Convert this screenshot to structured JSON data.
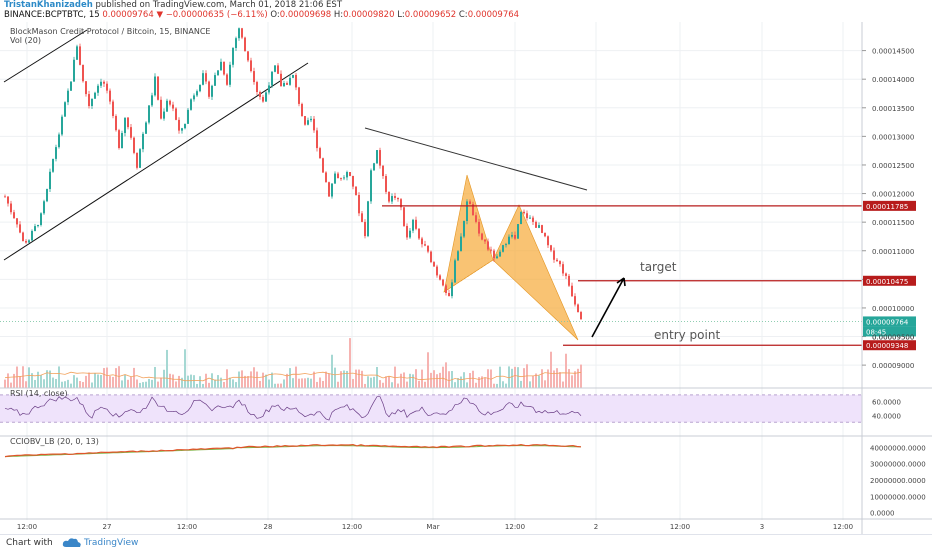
{
  "header": {
    "author": "TristanKhanizadeh",
    "published_text": "published on TradingView.com, March 01, 2018 21:06 EST",
    "symbol_line": "BINANCE:BCPTBTC, 15",
    "last_price": "0.00009764",
    "change_text": "−0.00000635 (−6.11%)",
    "ohlc": {
      "o_label": "O:",
      "o": "0.00009698",
      "h_label": "H:",
      "h": "0.00009820",
      "l_label": "L:",
      "l": "0.00009652",
      "c_label": "C:",
      "c": "0.00009764"
    }
  },
  "legend": {
    "title": "BlockMason Credit Protocol / Bitcoin, 15, BINANCE",
    "vol": "Vol (20)",
    "rsi": "RSI (14, close)",
    "obv": "CCIOBV_LB (20, 0, 13)"
  },
  "annotations": {
    "target": "target",
    "entry": "entry point"
  },
  "price_tags": {
    "last": "0.00009764",
    "countdown": "08:45",
    "level_top": "0.00011785",
    "level_target": "0.00010475",
    "level_entry": "0.00009348",
    "extra_tick": "0.00009500"
  },
  "footer": {
    "chart_with": "Chart with",
    "brand": "TradingView"
  },
  "colors": {
    "up": "#26a69a",
    "down": "#ef5350",
    "level_line": "#b71c1c",
    "pattern_fill": "#f7a937",
    "rsi_band": "#efe3fb",
    "rsi_line": "#6a3d86",
    "obv_line": "#e0542a",
    "obv_signal": "#7cb342",
    "trend_line": "#111111"
  },
  "chart_data": {
    "type": "candlestick",
    "symbol": "BCPTBTC",
    "interval": "15",
    "exchange": "BINANCE",
    "price_axis": {
      "ylim": [
        8.6e-05,
        0.00015
      ],
      "ticks": [
        0.000145,
        0.00014,
        0.000135,
        0.00013,
        0.000125,
        0.00012,
        0.000115,
        0.00011,
        0.000105,
        0.0001,
        9.5e-05,
        9e-05
      ]
    },
    "time_axis": {
      "tick_labels": [
        "12:00",
        "27",
        "12:00",
        "28",
        "12:00",
        "Mar",
        "12:00",
        "2",
        "12:00",
        "3",
        "12:00"
      ]
    },
    "price_path": [
      [
        0,
        0.0001195
      ],
      [
        6,
        0.000117
      ],
      [
        12,
        0.000115
      ],
      [
        18,
        0.0001115
      ],
      [
        24,
        0.000112
      ],
      [
        30,
        0.000114
      ],
      [
        36,
        0.000116
      ],
      [
        42,
        0.0001205
      ],
      [
        48,
        0.000126
      ],
      [
        54,
        0.0001305
      ],
      [
        60,
        0.0001355
      ],
      [
        66,
        0.00014
      ],
      [
        72,
        0.000146
      ],
      [
        78,
        0.0001395
      ],
      [
        84,
        0.0001355
      ],
      [
        90,
        0.000138
      ],
      [
        96,
        0.00014
      ],
      [
        102,
        0.000138
      ],
      [
        108,
        0.000133
      ],
      [
        114,
        0.0001285
      ],
      [
        120,
        0.0001335
      ],
      [
        126,
        0.00013
      ],
      [
        132,
        0.000125
      ],
      [
        138,
        0.0001305
      ],
      [
        144,
        0.000135
      ],
      [
        150,
        0.00014
      ],
      [
        156,
        0.000133
      ],
      [
        162,
        0.0001365
      ],
      [
        168,
        0.000135
      ],
      [
        174,
        0.0001305
      ],
      [
        180,
        0.0001325
      ],
      [
        186,
        0.0001365
      ],
      [
        192,
        0.0001385
      ],
      [
        198,
        0.0001405
      ],
      [
        204,
        0.0001375
      ],
      [
        210,
        0.0001405
      ],
      [
        216,
        0.000143
      ],
      [
        222,
        0.0001395
      ],
      [
        228,
        0.0001455
      ],
      [
        234,
        0.000149
      ],
      [
        240,
        0.000145
      ],
      [
        246,
        0.000142
      ],
      [
        252,
        0.000138
      ],
      [
        258,
        0.000136
      ],
      [
        264,
        0.0001395
      ],
      [
        270,
        0.000142
      ],
      [
        276,
        0.000139
      ],
      [
        282,
        0.0001395
      ],
      [
        288,
        0.0001405
      ],
      [
        294,
        0.000136
      ],
      [
        300,
        0.0001315
      ],
      [
        306,
        0.000133
      ],
      [
        312,
        0.0001285
      ],
      [
        318,
        0.000124
      ],
      [
        324,
        0.00012
      ],
      [
        330,
        0.0001235
      ],
      [
        336,
        0.0001225
      ],
      [
        342,
        0.0001235
      ],
      [
        348,
        0.0001215
      ],
      [
        354,
        0.000117
      ],
      [
        360,
        0.000113
      ],
      [
        366,
        0.000124
      ],
      [
        372,
        0.0001275
      ],
      [
        378,
        0.0001225
      ],
      [
        384,
        0.000119
      ],
      [
        390,
        0.0001195
      ],
      [
        396,
        0.0001175
      ],
      [
        402,
        0.000112
      ],
      [
        408,
        0.000115
      ],
      [
        414,
        0.000112
      ],
      [
        420,
        0.0001105
      ],
      [
        426,
        0.0001085
      ],
      [
        432,
        0.000106
      ],
      [
        438,
        0.0001045
      ],
      [
        444,
        0.0001015
      ],
      [
        450,
        0.0001085
      ],
      [
        456,
        0.000112
      ],
      [
        462,
        0.000119
      ],
      [
        468,
        0.0001165
      ],
      [
        474,
        0.0001125
      ],
      [
        480,
        0.0001115
      ],
      [
        486,
        0.0001095
      ],
      [
        492,
        0.0001085
      ],
      [
        498,
        0.0001105
      ],
      [
        504,
        0.000113
      ],
      [
        510,
        0.000112
      ],
      [
        516,
        0.0001165
      ],
      [
        522,
        0.000116
      ],
      [
        528,
        0.000115
      ],
      [
        534,
        0.000114
      ],
      [
        540,
        0.000112
      ],
      [
        546,
        0.0001095
      ],
      [
        552,
        0.0001085
      ],
      [
        558,
        0.0001065
      ],
      [
        564,
        0.000104
      ],
      [
        570,
        0.000101
      ],
      [
        576,
        9.86e-05
      ],
      [
        578,
        9.764e-05
      ]
    ],
    "drawn_levels": [
      0.00011785,
      0.00010475,
      9.348e-05
    ],
    "rsi": {
      "ticks": [
        60.0,
        40.0
      ],
      "band": [
        30,
        70
      ]
    },
    "obv": {
      "ticks": [
        40000000,
        30000000,
        20000000,
        10000000,
        0
      ]
    },
    "obv_tick_labels": [
      "40000000.0000",
      "30000000.0000",
      "20000000.0000",
      "10000000.0000",
      "0.0000"
    ],
    "rsi_tick_labels": [
      "60.0000",
      "40.0000"
    ]
  }
}
